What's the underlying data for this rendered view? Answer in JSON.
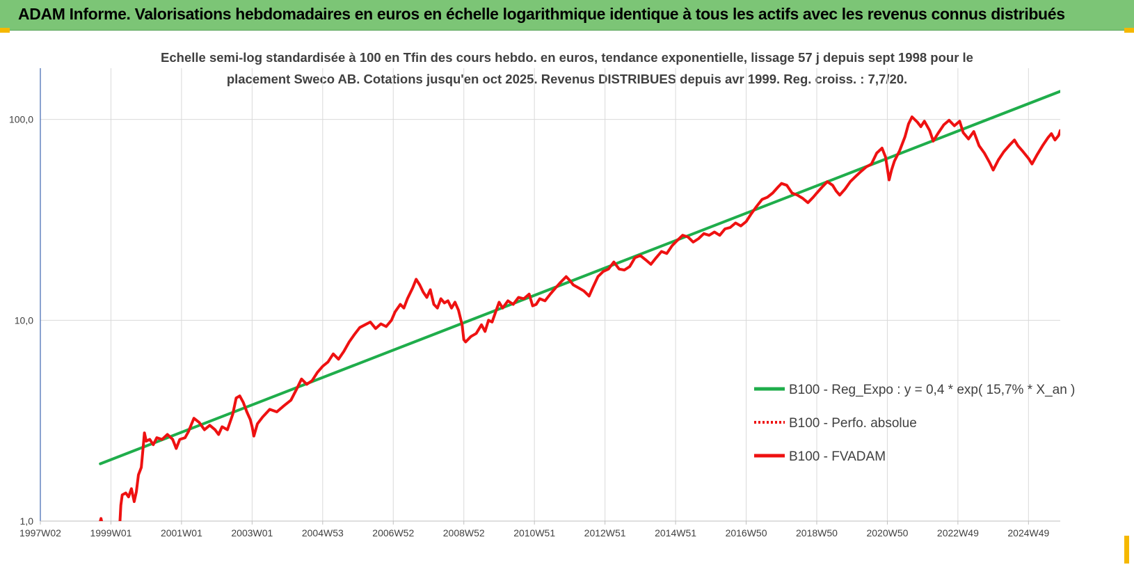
{
  "header": {
    "title": "ADAM Informe. Valorisations hebdomadaires en euros en échelle logarithmique identique à tous les actifs avec les revenus connus distribués"
  },
  "colors": {
    "banner": "#7cc576",
    "trend": "#1fad4b",
    "fvadam": "#ee1111",
    "perfo": "#ee1111",
    "grid": "#d9d9d9",
    "axis": "#4a6fb5",
    "corner": "#f5b800"
  },
  "chart_data": {
    "type": "line",
    "subtitle_lines": [
      "Echelle semi-log standardisée à 100 en Tfin des cours hebdo. en euros, tendance exponentielle, lissage 57 j depuis sept 1998 pour le",
      "placement Sweco AB. Cotations jusqu'en oct 2025. Revenus DISTRIBUES depuis avr 1999. Reg. croiss. : 7,7/20."
    ],
    "y_scale": "log",
    "ylim": [
      1,
      180
    ],
    "y_ticks": [
      {
        "value": 1,
        "label": "1,0"
      },
      {
        "value": 10,
        "label": "10,0"
      },
      {
        "value": 100,
        "label": "100,0"
      }
    ],
    "xlim": [
      1997.0,
      2025.9
    ],
    "x_ticks": [
      {
        "value": 1997.0,
        "label": "1997W02"
      },
      {
        "value": 1999.0,
        "label": "1999W01"
      },
      {
        "value": 2001.0,
        "label": "2001W01"
      },
      {
        "value": 2003.0,
        "label": "2003W01"
      },
      {
        "value": 2005.0,
        "label": "2004W53"
      },
      {
        "value": 2007.0,
        "label": "2006W52"
      },
      {
        "value": 2009.0,
        "label": "2008W52"
      },
      {
        "value": 2011.0,
        "label": "2010W51"
      },
      {
        "value": 2013.0,
        "label": "2012W51"
      },
      {
        "value": 2015.0,
        "label": "2014W51"
      },
      {
        "value": 2017.0,
        "label": "2016W50"
      },
      {
        "value": 2019.0,
        "label": "2018W50"
      },
      {
        "value": 2021.0,
        "label": "2020W50"
      },
      {
        "value": 2023.0,
        "label": "2022W49"
      },
      {
        "value": 2025.0,
        "label": "2024W49"
      }
    ],
    "grid": true,
    "legend_position": "bottom-right",
    "series": [
      {
        "name": "B100 - Reg_Expo : y = 0,4 * exp( 15,7% *  X_an )",
        "color": "#1fad4b",
        "style": "solid",
        "points": [
          [
            1998.7,
            1.93
          ],
          [
            2025.9,
            138
          ]
        ]
      },
      {
        "name": "B100 - Perfo. absolue",
        "color": "#ee1111",
        "style": "dotted",
        "points": []
      },
      {
        "name": "B100 - FVADAM",
        "color": "#ee1111",
        "style": "solid",
        "points": [
          [
            1998.7,
            1.0
          ],
          [
            1998.72,
            1.03
          ],
          [
            1998.76,
            0.95
          ],
          [
            1999.25,
            0.95
          ],
          [
            1999.28,
            1.2
          ],
          [
            1999.32,
            1.35
          ],
          [
            1999.42,
            1.38
          ],
          [
            1999.5,
            1.32
          ],
          [
            1999.58,
            1.45
          ],
          [
            1999.66,
            1.25
          ],
          [
            1999.72,
            1.4
          ],
          [
            1999.78,
            1.7
          ],
          [
            1999.86,
            1.85
          ],
          [
            1999.92,
            2.4
          ],
          [
            1999.95,
            2.75
          ],
          [
            2000.0,
            2.5
          ],
          [
            2000.1,
            2.55
          ],
          [
            2000.2,
            2.4
          ],
          [
            2000.3,
            2.6
          ],
          [
            2000.45,
            2.55
          ],
          [
            2000.6,
            2.7
          ],
          [
            2000.75,
            2.55
          ],
          [
            2000.85,
            2.3
          ],
          [
            2000.95,
            2.55
          ],
          [
            2001.1,
            2.6
          ],
          [
            2001.2,
            2.8
          ],
          [
            2001.35,
            3.25
          ],
          [
            2001.5,
            3.1
          ],
          [
            2001.65,
            2.85
          ],
          [
            2001.8,
            3.0
          ],
          [
            2001.95,
            2.85
          ],
          [
            2002.05,
            2.7
          ],
          [
            2002.15,
            2.95
          ],
          [
            2002.3,
            2.85
          ],
          [
            2002.45,
            3.4
          ],
          [
            2002.55,
            4.1
          ],
          [
            2002.65,
            4.2
          ],
          [
            2002.75,
            3.9
          ],
          [
            2002.85,
            3.5
          ],
          [
            2002.95,
            3.2
          ],
          [
            2003.0,
            2.95
          ],
          [
            2003.05,
            2.65
          ],
          [
            2003.15,
            3.05
          ],
          [
            2003.3,
            3.3
          ],
          [
            2003.5,
            3.6
          ],
          [
            2003.7,
            3.5
          ],
          [
            2003.9,
            3.75
          ],
          [
            2004.1,
            4.0
          ],
          [
            2004.25,
            4.5
          ],
          [
            2004.4,
            5.1
          ],
          [
            2004.55,
            4.8
          ],
          [
            2004.7,
            5.0
          ],
          [
            2004.85,
            5.5
          ],
          [
            2005.0,
            5.9
          ],
          [
            2005.15,
            6.2
          ],
          [
            2005.3,
            6.8
          ],
          [
            2005.45,
            6.4
          ],
          [
            2005.6,
            7.0
          ],
          [
            2005.75,
            7.8
          ],
          [
            2005.9,
            8.5
          ],
          [
            2006.05,
            9.2
          ],
          [
            2006.2,
            9.5
          ],
          [
            2006.35,
            9.8
          ],
          [
            2006.5,
            9.1
          ],
          [
            2006.65,
            9.6
          ],
          [
            2006.8,
            9.3
          ],
          [
            2006.95,
            10.0
          ],
          [
            2007.05,
            11.0
          ],
          [
            2007.2,
            12.0
          ],
          [
            2007.3,
            11.5
          ],
          [
            2007.4,
            12.8
          ],
          [
            2007.55,
            14.5
          ],
          [
            2007.65,
            16.0
          ],
          [
            2007.75,
            15.0
          ],
          [
            2007.85,
            13.8
          ],
          [
            2007.95,
            13.0
          ],
          [
            2008.05,
            14.2
          ],
          [
            2008.15,
            12.0
          ],
          [
            2008.25,
            11.5
          ],
          [
            2008.35,
            12.8
          ],
          [
            2008.45,
            12.2
          ],
          [
            2008.55,
            12.5
          ],
          [
            2008.65,
            11.5
          ],
          [
            2008.75,
            12.3
          ],
          [
            2008.85,
            11.2
          ],
          [
            2008.95,
            9.5
          ],
          [
            2009.0,
            8.0
          ],
          [
            2009.05,
            7.8
          ],
          [
            2009.2,
            8.3
          ],
          [
            2009.35,
            8.6
          ],
          [
            2009.5,
            9.5
          ],
          [
            2009.6,
            8.8
          ],
          [
            2009.7,
            10.0
          ],
          [
            2009.8,
            9.8
          ],
          [
            2009.9,
            11.0
          ],
          [
            2010.0,
            12.3
          ],
          [
            2010.1,
            11.5
          ],
          [
            2010.25,
            12.5
          ],
          [
            2010.4,
            12.0
          ],
          [
            2010.55,
            13.0
          ],
          [
            2010.7,
            12.8
          ],
          [
            2010.85,
            13.5
          ],
          [
            2010.95,
            11.8
          ],
          [
            2011.05,
            12.0
          ],
          [
            2011.15,
            12.8
          ],
          [
            2011.3,
            12.5
          ],
          [
            2011.45,
            13.5
          ],
          [
            2011.6,
            14.5
          ],
          [
            2011.75,
            15.5
          ],
          [
            2011.9,
            16.5
          ],
          [
            2012.0,
            15.8
          ],
          [
            2012.1,
            15.0
          ],
          [
            2012.25,
            14.5
          ],
          [
            2012.4,
            14.0
          ],
          [
            2012.55,
            13.2
          ],
          [
            2012.65,
            14.5
          ],
          [
            2012.8,
            16.5
          ],
          [
            2012.95,
            17.5
          ],
          [
            2013.1,
            18.0
          ],
          [
            2013.25,
            19.5
          ],
          [
            2013.4,
            18.0
          ],
          [
            2013.55,
            17.8
          ],
          [
            2013.7,
            18.5
          ],
          [
            2013.85,
            20.5
          ],
          [
            2014.0,
            21.0
          ],
          [
            2014.15,
            20.0
          ],
          [
            2014.3,
            19.0
          ],
          [
            2014.45,
            20.5
          ],
          [
            2014.6,
            22.0
          ],
          [
            2014.75,
            21.5
          ],
          [
            2014.9,
            23.5
          ],
          [
            2015.05,
            25.0
          ],
          [
            2015.2,
            26.5
          ],
          [
            2015.35,
            26.0
          ],
          [
            2015.5,
            24.5
          ],
          [
            2015.65,
            25.5
          ],
          [
            2015.8,
            27.0
          ],
          [
            2015.95,
            26.5
          ],
          [
            2016.1,
            27.5
          ],
          [
            2016.25,
            26.5
          ],
          [
            2016.4,
            28.5
          ],
          [
            2016.55,
            29.0
          ],
          [
            2016.7,
            30.5
          ],
          [
            2016.85,
            29.5
          ],
          [
            2017.0,
            31.0
          ],
          [
            2017.15,
            34.0
          ],
          [
            2017.3,
            37.0
          ],
          [
            2017.45,
            40.0
          ],
          [
            2017.6,
            41.0
          ],
          [
            2017.75,
            43.0
          ],
          [
            2017.9,
            46.0
          ],
          [
            2018.0,
            48.0
          ],
          [
            2018.15,
            47.0
          ],
          [
            2018.3,
            43.0
          ],
          [
            2018.45,
            42.0
          ],
          [
            2018.6,
            40.5
          ],
          [
            2018.75,
            38.5
          ],
          [
            2018.9,
            41.0
          ],
          [
            2019.0,
            43.0
          ],
          [
            2019.15,
            46.0
          ],
          [
            2019.3,
            49.0
          ],
          [
            2019.45,
            47.0
          ],
          [
            2019.55,
            44.0
          ],
          [
            2019.65,
            42.0
          ],
          [
            2019.8,
            45.0
          ],
          [
            2019.95,
            49.0
          ],
          [
            2020.1,
            52.0
          ],
          [
            2020.25,
            55.0
          ],
          [
            2020.4,
            58.0
          ],
          [
            2020.55,
            60.0
          ],
          [
            2020.7,
            68.0
          ],
          [
            2020.85,
            72.0
          ],
          [
            2020.95,
            65.0
          ],
          [
            2021.05,
            50.0
          ],
          [
            2021.12,
            56.0
          ],
          [
            2021.2,
            62.0
          ],
          [
            2021.35,
            70.0
          ],
          [
            2021.5,
            82.0
          ],
          [
            2021.6,
            95.0
          ],
          [
            2021.7,
            103.0
          ],
          [
            2021.85,
            97.0
          ],
          [
            2021.95,
            92.0
          ],
          [
            2022.05,
            98.0
          ],
          [
            2022.2,
            88.0
          ],
          [
            2022.3,
            78.0
          ],
          [
            2022.45,
            86.0
          ],
          [
            2022.6,
            94.0
          ],
          [
            2022.75,
            99.0
          ],
          [
            2022.9,
            93.0
          ],
          [
            2023.05,
            98.0
          ],
          [
            2023.15,
            86.0
          ],
          [
            2023.3,
            80.0
          ],
          [
            2023.45,
            87.0
          ],
          [
            2023.6,
            74.0
          ],
          [
            2023.75,
            68.0
          ],
          [
            2023.9,
            61.0
          ],
          [
            2024.0,
            56.0
          ],
          [
            2024.15,
            63.0
          ],
          [
            2024.3,
            69.0
          ],
          [
            2024.45,
            74.0
          ],
          [
            2024.6,
            79.0
          ],
          [
            2024.7,
            74.0
          ],
          [
            2024.85,
            69.0
          ],
          [
            2025.0,
            64.0
          ],
          [
            2025.1,
            60.0
          ],
          [
            2025.25,
            67.0
          ],
          [
            2025.4,
            74.0
          ],
          [
            2025.55,
            81.0
          ],
          [
            2025.65,
            85.0
          ],
          [
            2025.75,
            79.0
          ],
          [
            2025.85,
            83.0
          ],
          [
            2025.9,
            88.0
          ]
        ]
      }
    ]
  }
}
